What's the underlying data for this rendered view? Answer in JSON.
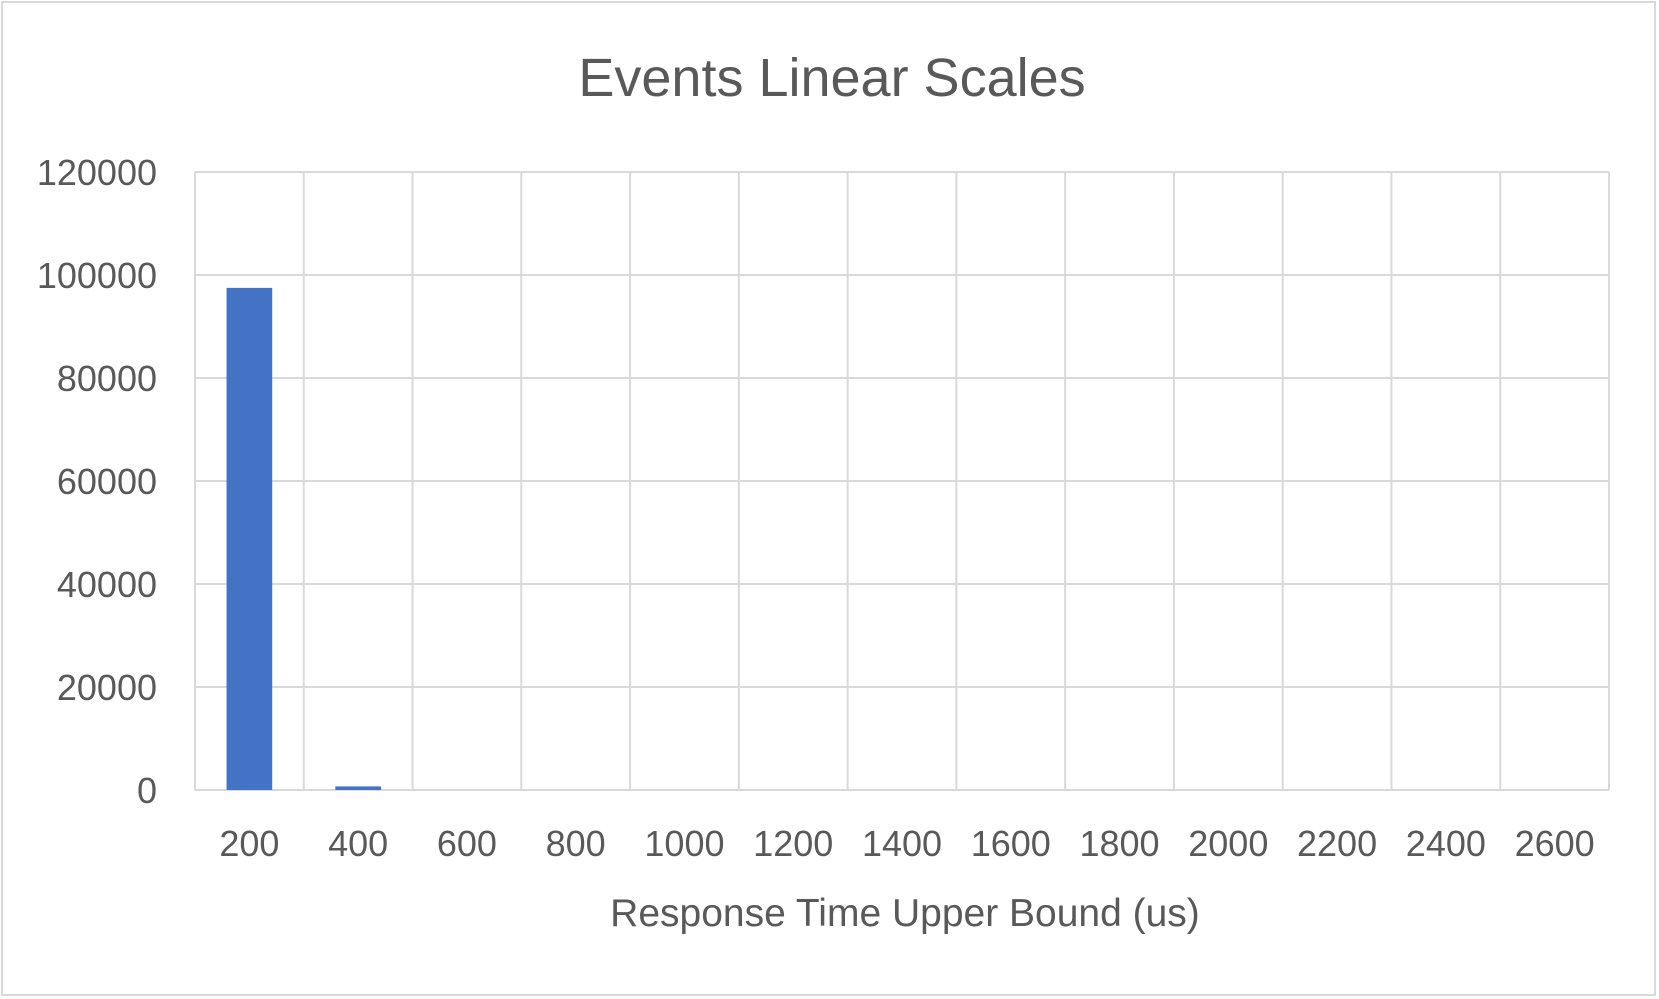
{
  "chart_data": {
    "type": "bar",
    "title": "Events Linear Scales",
    "xlabel": "Response Time Upper Bound (us)",
    "ylabel": "",
    "categories": [
      "200",
      "400",
      "600",
      "800",
      "1000",
      "1200",
      "1400",
      "1600",
      "1800",
      "2000",
      "2200",
      "2400",
      "2600"
    ],
    "series": [
      {
        "values": [
          97500,
          700,
          0,
          0,
          0,
          0,
          0,
          0,
          0,
          0,
          0,
          0,
          0
        ],
        "color": "#4472c4"
      }
    ],
    "ylim": [
      0,
      120000
    ],
    "yticks": [
      "0",
      "20000",
      "40000",
      "60000",
      "80000",
      "100000",
      "120000"
    ],
    "grid": true,
    "legend": "none"
  },
  "colors": {
    "gridline": "#d9d9d9",
    "text": "#595959",
    "border": "#d9d9d9"
  }
}
